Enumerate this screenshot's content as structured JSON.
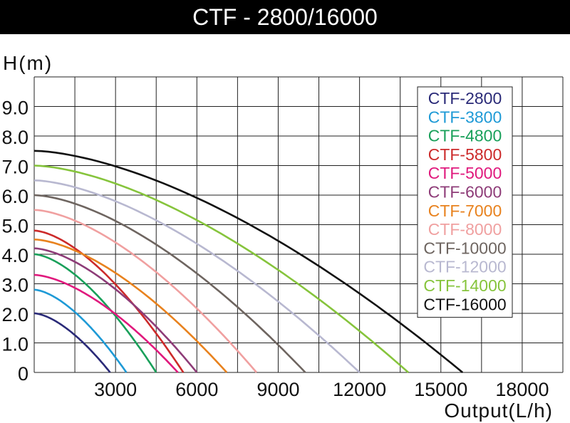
{
  "chart_data": {
    "type": "line",
    "title": "CTF - 2800/16000",
    "ylabel": "H(m)",
    "xlabel": "Output(L/h)",
    "xlim": [
      0,
      19500
    ],
    "ylim": [
      0,
      10
    ],
    "x_ticks": [
      {
        "value": 3000,
        "label": "3000"
      },
      {
        "value": 6000,
        "label": "6000"
      },
      {
        "value": 9000,
        "label": "9000"
      },
      {
        "value": 12000,
        "label": "12000"
      },
      {
        "value": 15000,
        "label": "15000"
      },
      {
        "value": 18000,
        "label": "18000"
      }
    ],
    "y_ticks": [
      {
        "value": 0,
        "label": "0"
      },
      {
        "value": 1,
        "label": "1.0"
      },
      {
        "value": 2,
        "label": "2.0"
      },
      {
        "value": 3,
        "label": "3.0"
      },
      {
        "value": 4,
        "label": "4.0"
      },
      {
        "value": 5,
        "label": "5.0"
      },
      {
        "value": 6,
        "label": "6.0"
      },
      {
        "value": 7,
        "label": "7.0"
      },
      {
        "value": 8,
        "label": "8.0"
      },
      {
        "value": 9,
        "label": "9.0"
      }
    ],
    "grid": true,
    "legend_position": "top-right",
    "series": [
      {
        "name": "CTF-2800",
        "color": "#2a2a78",
        "h_max": 2.0,
        "q_max": 2800
      },
      {
        "name": "CTF-3800",
        "color": "#1e9ad6",
        "h_max": 2.8,
        "q_max": 3400
      },
      {
        "name": "CTF-4800",
        "color": "#19a05a",
        "h_max": 4.0,
        "q_max": 4500
      },
      {
        "name": "CTF-5800",
        "color": "#cc2a2a",
        "h_max": 4.8,
        "q_max": 5500
      },
      {
        "name": "CTF-5000",
        "color": "#e0197d",
        "h_max": 3.3,
        "q_max": 5300
      },
      {
        "name": "CTF-6000",
        "color": "#8e3c78",
        "h_max": 4.2,
        "q_max": 6000
      },
      {
        "name": "CTF-7000",
        "color": "#e8821e",
        "h_max": 4.5,
        "q_max": 7100
      },
      {
        "name": "CTF-8000",
        "color": "#f0a0a0",
        "h_max": 5.5,
        "q_max": 8200
      },
      {
        "name": "CTF-10000",
        "color": "#6e6560",
        "h_max": 6.0,
        "q_max": 10000
      },
      {
        "name": "CTF-12000",
        "color": "#b8b8d0",
        "h_max": 6.5,
        "q_max": 12000
      },
      {
        "name": "CTF-14000",
        "color": "#86c43c",
        "h_max": 7.0,
        "q_max": 13800
      },
      {
        "name": "CTF-16000",
        "color": "#111111",
        "h_max": 7.5,
        "q_max": 15800
      }
    ]
  }
}
